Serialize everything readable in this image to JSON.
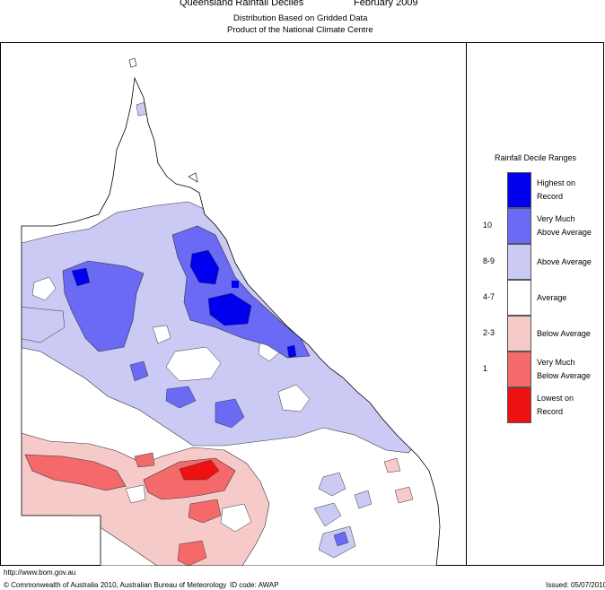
{
  "header": {
    "title": "Queensland Rainfall Deciles",
    "period": "February 2009",
    "line2": "Distribution Based on Gridded Data",
    "line3": "Product of the National Climate Centre"
  },
  "legend": {
    "title": "Rainfall Decile Ranges",
    "items": [
      {
        "range": "",
        "desc1": "Highest on",
        "desc2": "Record",
        "color": "#0000ee"
      },
      {
        "range": "10",
        "desc1": "Very Much",
        "desc2": "Above Average",
        "color": "#6a6af5"
      },
      {
        "range": "8-9",
        "desc1": "Above Average",
        "desc2": "",
        "color": "#cacaf4"
      },
      {
        "range": "4-7",
        "desc1": "Average",
        "desc2": "",
        "color": "#ffffff"
      },
      {
        "range": "2-3",
        "desc1": "Below Average",
        "desc2": "",
        "color": "#f7caca"
      },
      {
        "range": "1",
        "desc1": "Very Much",
        "desc2": "Below Average",
        "color": "#f46a6a"
      },
      {
        "range": "",
        "desc1": "Lowest on",
        "desc2": "Record",
        "color": "#ee1111"
      }
    ]
  },
  "footer": {
    "url": "http://www.bom.gov.au",
    "copyright": "© Commonwealth of Australia 2010, Australian Bureau of Meteorology",
    "id_code": "ID code: AWAP",
    "issued": "Issued: 05/07/2010"
  }
}
